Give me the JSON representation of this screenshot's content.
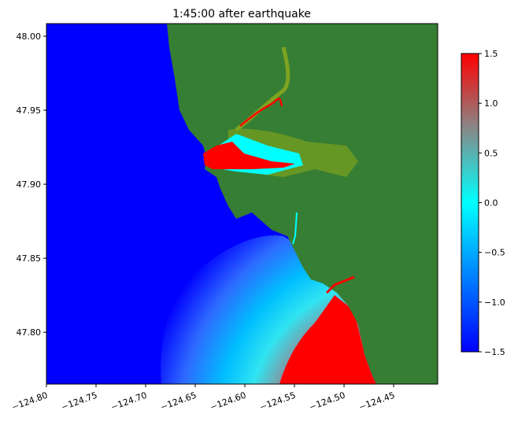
{
  "chart_data": {
    "type": "heatmap",
    "title": "1:45:00 after earthquake",
    "xlabel": "",
    "ylabel": "",
    "xlim": [
      -124.8,
      -124.4056
    ],
    "ylim": [
      47.765,
      48.0085
    ],
    "xticks": [
      -124.8,
      -124.75,
      -124.7,
      -124.65,
      -124.6,
      -124.55,
      -124.5,
      -124.45
    ],
    "xtick_labels": [
      "−124.80",
      "−124.75",
      "−124.70",
      "−124.65",
      "−124.60",
      "−124.55",
      "−124.50",
      "−124.45"
    ],
    "yticks": [
      47.8,
      47.85,
      47.9,
      47.95,
      48.0
    ],
    "ytick_labels": [
      "47.80",
      "47.85",
      "47.90",
      "47.95",
      "48.00"
    ],
    "colorbar": {
      "range": [
        -1.5,
        1.5
      ],
      "ticks": [
        1.5,
        1.0,
        0.5,
        0.0,
        -0.5,
        -1.0,
        -1.5
      ],
      "tick_labels": [
        "1.5",
        "1.0",
        "0.5",
        "0.0",
        "−0.5",
        "−1.0",
        "−1.5"
      ],
      "colors": [
        "#0000ff",
        "#00ffff",
        "#ff0000"
      ]
    },
    "land_color": "#367e33",
    "inundation_color": "#7ea320",
    "grid": false
  }
}
